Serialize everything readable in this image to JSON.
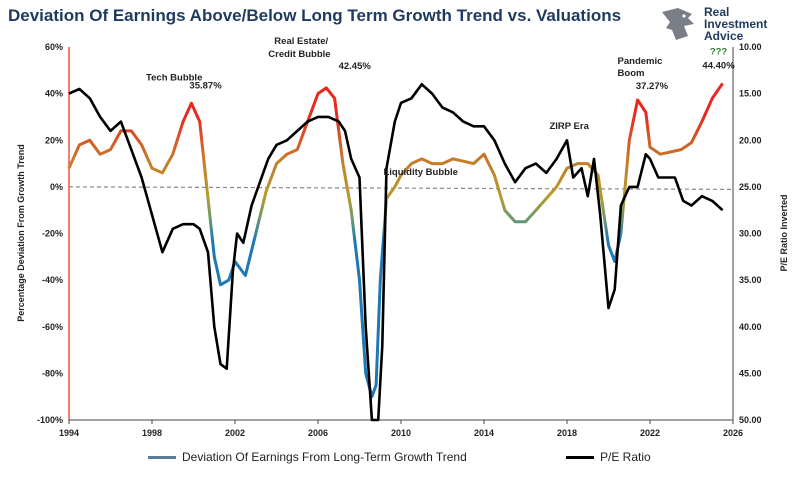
{
  "title": "Deviation Of Earnings Above/Below Long Term Growth Trend vs. Valuations",
  "logo": {
    "lines": [
      "Real",
      "Investment",
      "Advice"
    ]
  },
  "colors": {
    "title": "#1f3a5f",
    "pe": "#000000",
    "zero": "#888888",
    "low": "#1f78b4",
    "mid": "#b59a2a",
    "high": "#e8281e"
  },
  "chart_data": {
    "type": "line",
    "x_ticks": [
      "1994",
      "1998",
      "2002",
      "2006",
      "2010",
      "2014",
      "2018",
      "2022",
      "2026"
    ],
    "xlim": [
      1994,
      2026
    ],
    "ylabel_left": "Percentage Deviation From Growth Trend",
    "ylabel_right": "P/E Ratio Inverted",
    "ylim_left": [
      -100,
      60
    ],
    "ylim_right_inverted": [
      10,
      50
    ],
    "y_left_ticks": [
      "60%",
      "40%",
      "20%",
      "0%",
      "-20%",
      "-40%",
      "-60%",
      "-80%",
      "-100%"
    ],
    "y_right_ticks": [
      "10.00",
      "15.00",
      "20.00",
      "25.00",
      "30.00",
      "35.00",
      "40.00",
      "45.00",
      "50.00"
    ],
    "grid": false,
    "legend_position": "bottom",
    "series": [
      {
        "name": "Deviation Of Earnings From Long-Term Growth Trend",
        "axis": "left",
        "x": [
          1994,
          1994.5,
          1995,
          1995.5,
          1996,
          1996.5,
          1997,
          1997.5,
          1998,
          1998.5,
          1999,
          1999.5,
          1999.9,
          2000.3,
          2000.7,
          2001,
          2001.3,
          2001.7,
          2002,
          2002.5,
          2003,
          2003.5,
          2004,
          2004.5,
          2005,
          2005.5,
          2006,
          2006.4,
          2006.8,
          2007.2,
          2007.6,
          2008,
          2008.3,
          2008.6,
          2008.8,
          2009,
          2009.3,
          2009.7,
          2010,
          2010.5,
          2011,
          2011.5,
          2012,
          2012.5,
          2013,
          2013.5,
          2014,
          2014.5,
          2015,
          2015.5,
          2016,
          2016.5,
          2017,
          2017.5,
          2018,
          2018.5,
          2019,
          2019.5,
          2020,
          2020.3,
          2020.6,
          2021,
          2021.4,
          2021.8,
          2022,
          2022.5,
          2023,
          2023.5,
          2024,
          2024.5,
          2025,
          2025.5
        ],
        "y": [
          8,
          18,
          20,
          14,
          16,
          24,
          24,
          18,
          8,
          6,
          14,
          28,
          35.87,
          28,
          -5,
          -30,
          -42,
          -40,
          -32,
          -38,
          -20,
          -2,
          10,
          14,
          16,
          28,
          40,
          42.45,
          38,
          10,
          -10,
          -40,
          -80,
          -90,
          -85,
          -40,
          -5,
          0,
          5,
          10,
          12,
          10,
          10,
          12,
          11,
          10,
          14,
          5,
          -10,
          -15,
          -15,
          -10,
          -5,
          0,
          8,
          10,
          10,
          5,
          -25,
          -32,
          -20,
          20,
          37.27,
          32,
          17,
          14,
          15,
          16,
          19,
          28,
          38,
          44.4
        ]
      },
      {
        "name": "P/E Ratio",
        "axis": "right_inverted",
        "x": [
          1994,
          1994.5,
          1995,
          1995.5,
          1996,
          1996.5,
          1997,
          1997.5,
          1998,
          1998.5,
          1999,
          1999.5,
          2000,
          2000.3,
          2000.7,
          2001,
          2001.3,
          2001.6,
          2001.9,
          2002.1,
          2002.4,
          2002.8,
          2003.2,
          2003.6,
          2004,
          2004.5,
          2005,
          2005.5,
          2006,
          2006.5,
          2007,
          2007.3,
          2007.6,
          2008,
          2008.3,
          2008.6,
          2008.9,
          2009.1,
          2009.3,
          2009.7,
          2010,
          2010.5,
          2011,
          2011.5,
          2012,
          2012.5,
          2013,
          2013.5,
          2014,
          2014.5,
          2015,
          2015.5,
          2016,
          2016.5,
          2017,
          2017.5,
          2018,
          2018.3,
          2018.7,
          2019,
          2019.3,
          2019.6,
          2020,
          2020.3,
          2020.6,
          2021,
          2021.4,
          2021.8,
          2022,
          2022.4,
          2022.8,
          2023.2,
          2023.6,
          2024,
          2024.5,
          2025,
          2025.5
        ],
        "y": [
          15,
          14.5,
          15.5,
          17.5,
          19,
          18,
          21,
          24,
          28,
          32,
          29.5,
          29,
          29,
          29.5,
          32,
          40,
          44,
          44.5,
          34,
          30,
          31,
          27,
          24.5,
          22,
          20.5,
          20,
          19,
          18,
          17.5,
          17.5,
          18,
          19,
          22,
          24,
          40,
          50,
          50,
          42,
          23,
          18,
          16,
          15.5,
          14,
          15,
          16.5,
          17,
          18,
          18.5,
          18.5,
          20,
          22.5,
          24.5,
          23,
          22.5,
          23.5,
          22,
          20,
          24,
          23,
          26,
          22,
          28,
          38,
          36,
          27,
          25,
          25,
          21.5,
          22,
          24,
          24,
          24,
          26.5,
          27,
          26,
          26.5,
          27.5
        ]
      }
    ],
    "annotations": [
      {
        "text": "Tech Bubble",
        "x": 1999.4,
        "y": 35.87
      },
      {
        "text": "35.87%",
        "x": 1999.9,
        "y": 35.87
      },
      {
        "text": "Real Estate/",
        "x": 2006.4,
        "y": 42.45
      },
      {
        "text": "Credit Bubble",
        "x": 2006.4,
        "y": 42.45
      },
      {
        "text": "42.45%",
        "x": 2006.8,
        "y": 42.45
      },
      {
        "text": "Liquidity Bubble",
        "x": 2013.3,
        "y": 14
      },
      {
        "text": "ZIRP Era",
        "x": 2018.6,
        "y": 30
      },
      {
        "text": "Pandemic",
        "x": 2021.4,
        "y": 37.27
      },
      {
        "text": "Boom",
        "x": 2021.4,
        "y": 37.27
      },
      {
        "text": "37.27%",
        "x": 2021.8,
        "y": 37.27
      },
      {
        "text": "???",
        "x": 2025.4,
        "y": 44.4
      },
      {
        "text": "44.40%",
        "x": 2025.4,
        "y": 44.4
      }
    ]
  }
}
